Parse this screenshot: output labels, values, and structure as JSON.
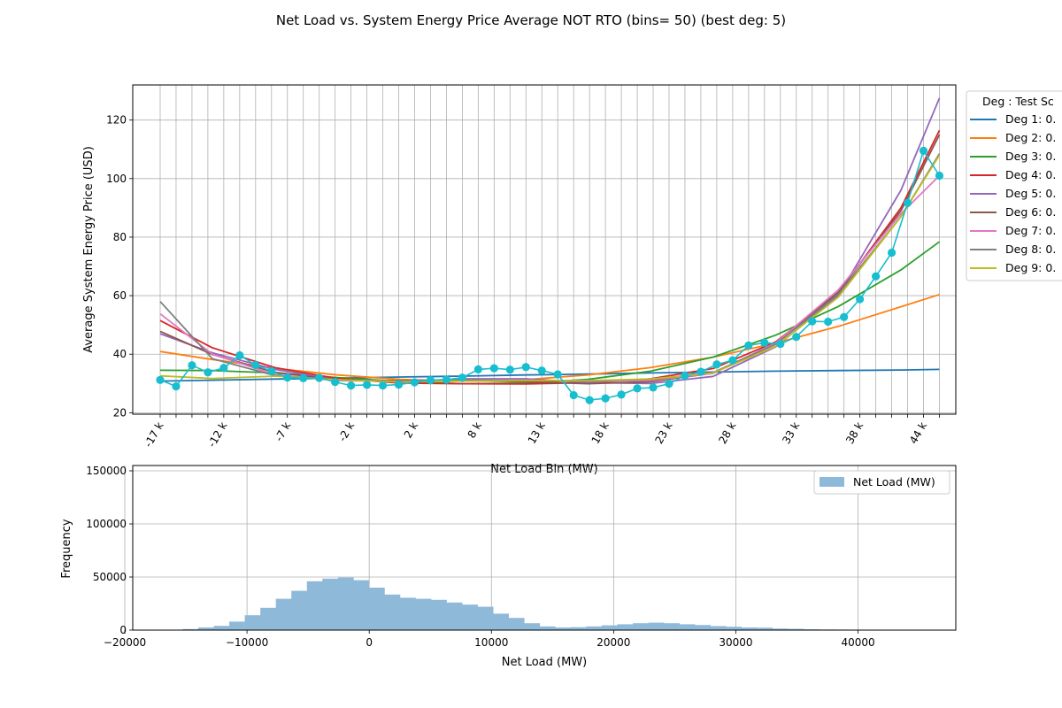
{
  "figure": {
    "title": "Net Load vs. System Energy Price Average NOT RTO (bins= 50) (best deg: 5)"
  },
  "chart_data": [
    {
      "type": "line",
      "xlabel": "Net Load Bin (MW)",
      "ylabel": "Average System Energy Price (USD)",
      "xlim": [
        -19350,
        46380
      ],
      "ylim": [
        19.5,
        132
      ],
      "yticks": [
        20,
        40,
        60,
        80,
        100,
        120
      ],
      "xtick_labels": [
        "-17 k",
        "-12 k",
        "-7 k",
        "-2 k",
        "2 k",
        "8 k",
        "13 k",
        "18 k",
        "23 k",
        "28 k",
        "33 k",
        "38 k",
        "44 k"
      ],
      "grid": true,
      "legend": {
        "title": "Deg : Test Sc",
        "placement": "outside-right"
      },
      "scatter_series": {
        "color": "#17becf",
        "x": [
          -17160,
          -15890,
          -14620,
          -13350,
          -12080,
          -10810,
          -9540,
          -8270,
          -7000,
          -5730,
          -4460,
          -3190,
          -1920,
          -650,
          620,
          1890,
          3160,
          4430,
          5700,
          6970,
          8240,
          9510,
          10780,
          12050,
          13320,
          14590,
          15860,
          17130,
          18400,
          19670,
          20940,
          22210,
          23480,
          24750,
          26020,
          27290,
          28560,
          29830,
          31100,
          32370,
          33640,
          34910,
          36180,
          37450,
          38720,
          39990,
          41260,
          42530,
          43800,
          45070
        ],
        "y": [
          31.2,
          29.0,
          36.2,
          33.8,
          35.3,
          39.6,
          36.3,
          34.2,
          32.0,
          31.8,
          31.9,
          30.5,
          29.3,
          29.5,
          29.3,
          29.6,
          30.4,
          31.1,
          31.3,
          32.0,
          34.8,
          35.2,
          34.7,
          35.6,
          34.4,
          33.1,
          26.0,
          24.3,
          24.9,
          26.2,
          28.3,
          28.6,
          29.9,
          32.7,
          34.0,
          36.5,
          37.9,
          43.0,
          43.9,
          43.5,
          45.9,
          51.2,
          51.1,
          52.7,
          58.8,
          66.6,
          74.7,
          91.7,
          109.5,
          101.0
        ]
      },
      "series": [
        {
          "name": "Deg 1: 0.",
          "color": "#1f77b4",
          "x": [
            -17160,
            -13000,
            -8000,
            -3000,
            2000,
            7000,
            12000,
            17000,
            22000,
            27000,
            32000,
            37000,
            42000,
            45070
          ],
          "y": [
            30.8,
            31.1,
            31.5,
            31.8,
            32.2,
            32.5,
            32.9,
            33.2,
            33.6,
            33.9,
            34.2,
            34.4,
            34.6,
            34.8
          ]
        },
        {
          "name": "Deg 2: 0.",
          "color": "#ff7f0e",
          "x": [
            -17160,
            -13000,
            -8000,
            -3000,
            2000,
            7000,
            12000,
            17000,
            22000,
            27000,
            32000,
            37000,
            42000,
            45070
          ],
          "y": [
            40.9,
            38.2,
            35.2,
            32.9,
            31.4,
            30.8,
            31.3,
            32.9,
            35.4,
            39.0,
            43.8,
            49.5,
            56.2,
            60.4
          ]
        },
        {
          "name": "Deg 3: 0.",
          "color": "#2ca02c",
          "x": [
            -17160,
            -13000,
            -8000,
            -3000,
            2000,
            7000,
            12000,
            17000,
            22000,
            27000,
            32000,
            37000,
            42000,
            45070
          ],
          "y": [
            34.5,
            34.4,
            33.6,
            32.0,
            30.7,
            29.9,
            30.1,
            31.4,
            34.2,
            39.0,
            46.5,
            56.3,
            68.8,
            78.4
          ]
        },
        {
          "name": "Deg 4: 0.",
          "color": "#d62728",
          "x": [
            -17160,
            -13000,
            -8000,
            -3000,
            2000,
            7000,
            12000,
            17000,
            22000,
            27000,
            32000,
            37000,
            42000,
            45070
          ],
          "y": [
            51.5,
            42.2,
            35.4,
            31.7,
            30.1,
            29.9,
            29.8,
            30.3,
            31.6,
            35.1,
            44.2,
            61.0,
            90.0,
            116.5
          ]
        },
        {
          "name": "Deg 5: 0.",
          "color": "#9467bd",
          "x": [
            -17160,
            -13000,
            -8000,
            -3000,
            2000,
            7000,
            12000,
            17000,
            22000,
            27000,
            32000,
            37000,
            42000,
            45070
          ],
          "y": [
            47.0,
            40.5,
            34.8,
            31.2,
            30.6,
            31.6,
            31.6,
            30.3,
            30.0,
            32.4,
            42.5,
            60.0,
            96.0,
            127.5
          ]
        },
        {
          "name": "Deg 6: 0.",
          "color": "#8c564b",
          "x": [
            -17160,
            -13000,
            -8000,
            -3000,
            2000,
            7000,
            12000,
            17000,
            22000,
            27000,
            32000,
            37000,
            42000,
            45070
          ],
          "y": [
            47.8,
            39.9,
            33.8,
            31.2,
            30.9,
            31.0,
            30.6,
            29.9,
            30.6,
            33.5,
            43.8,
            61.2,
            89.0,
            115.0
          ]
        },
        {
          "name": "Deg 7: 0.",
          "color": "#e377c2",
          "x": [
            -17160,
            -13000,
            -8000,
            -3000,
            2000,
            7000,
            12000,
            17000,
            22000,
            27000,
            32000,
            37000,
            42000,
            45070
          ],
          "y": [
            53.8,
            40.0,
            33.0,
            31.0,
            30.7,
            31.2,
            31.1,
            30.8,
            31.0,
            33.5,
            43.8,
            62.0,
            88.0,
            101.0
          ]
        },
        {
          "name": "Deg 8: 0.",
          "color": "#7f7f7f",
          "x": [
            -17160,
            -13000,
            -8000,
            -3000,
            2000,
            7000,
            12000,
            17000,
            22000,
            27000,
            32000,
            37000,
            42000,
            45070
          ],
          "y": [
            58.0,
            38.5,
            32.7,
            31.1,
            31.0,
            31.2,
            31.0,
            30.9,
            31.3,
            33.7,
            43.4,
            60.5,
            87.0,
            108.5
          ]
        },
        {
          "name": "Deg 9: 0.",
          "color": "#bcbd22",
          "x": [
            -17160,
            -13000,
            -8000,
            -3000,
            2000,
            7000,
            12000,
            17000,
            22000,
            27000,
            32000,
            37000,
            42000,
            45070
          ],
          "y": [
            32.6,
            31.7,
            32.5,
            31.3,
            30.5,
            30.8,
            31.0,
            31.0,
            31.5,
            33.6,
            42.7,
            59.5,
            87.0,
            108.0
          ]
        }
      ]
    },
    {
      "type": "bar",
      "xlabel": "Net Load (MW)",
      "ylabel": "Frequency",
      "xlim": [
        -19350,
        48000
      ],
      "ylim": [
        0,
        155000
      ],
      "xticks": [
        -20000,
        -10000,
        0,
        10000,
        20000,
        30000,
        40000
      ],
      "xtick_labels": [
        "−20000",
        "−10000",
        "0",
        "10000",
        "20000",
        "30000",
        "40000"
      ],
      "yticks": [
        0,
        50000,
        100000,
        150000
      ],
      "ytick_labels": [
        "0",
        "50000",
        "100000",
        "150000"
      ],
      "grid": true,
      "legend": {
        "placement": "top-right",
        "entries": [
          "Net Load (MW)"
        ]
      },
      "color": "#8fb9d8",
      "bin_start": -17800,
      "bin_width": 1270,
      "values": [
        100,
        300,
        1000,
        2500,
        4000,
        8000,
        14000,
        21000,
        29500,
        37000,
        46000,
        48500,
        49500,
        47000,
        40000,
        33500,
        30500,
        29500,
        28500,
        26000,
        24000,
        22000,
        15500,
        11500,
        6500,
        3500,
        2500,
        2800,
        3500,
        4500,
        5500,
        6500,
        7000,
        6500,
        5500,
        4800,
        3800,
        3200,
        2500,
        2300,
        1500,
        1200,
        800,
        600,
        500,
        400,
        300,
        200,
        100,
        50
      ]
    }
  ]
}
